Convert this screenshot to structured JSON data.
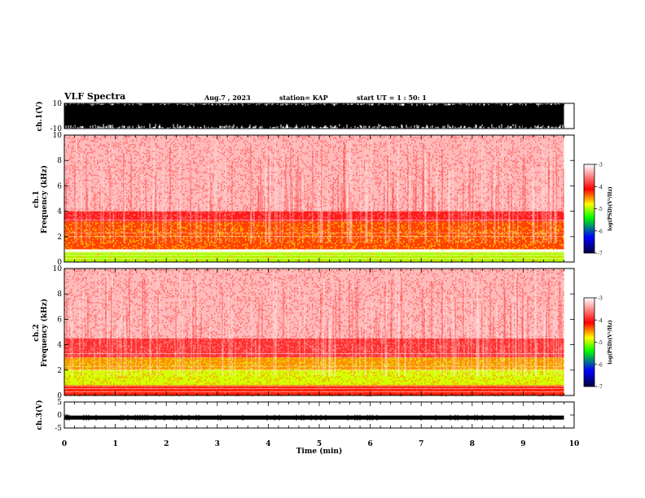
{
  "header": {
    "title": "VLF Spectra",
    "date": "Aug.7 , 2023",
    "station": "station= KAP",
    "start": "start UT = 1 : 50: 1"
  },
  "chart_data": [
    {
      "type": "line",
      "panel": "ch1-waveform",
      "ylabel": "ch.1(V)",
      "ylim": [
        -10,
        10
      ],
      "y_ticks": [
        "10",
        "-10"
      ],
      "xlim": [
        0,
        10
      ],
      "trace_extent_min": 9.8,
      "trace_color": "#000000"
    },
    {
      "type": "heatmap",
      "panel": "ch1-spectrogram",
      "ylabel": "ch.1\nFrequency (kHz)",
      "ylim": [
        0,
        10
      ],
      "y_ticks": [
        "0",
        "2",
        "4",
        "6",
        "8",
        "10"
      ],
      "xlim": [
        0,
        10
      ],
      "data_extent_min": 9.8,
      "colorbar": {
        "label": "log(PSD)(V²/Hz)",
        "range": [
          -7,
          -3
        ],
        "ticks": [
          "-3",
          "-4",
          "-5",
          "-6",
          "-7"
        ],
        "colors": [
          "#000040",
          "#0000ff",
          "#00ff00",
          "#ffff00",
          "#ff0000",
          "#ffffff"
        ]
      },
      "bands": [
        {
          "from_khz": 0,
          "to_khz": 0.8,
          "log_psd": -5.0
        },
        {
          "from_khz": 1.0,
          "to_khz": 3.2,
          "log_psd": -4.3
        },
        {
          "from_khz": 3.2,
          "to_khz": 4.0,
          "log_psd": -4.0
        },
        {
          "from_khz": 4.0,
          "to_khz": 10.0,
          "log_psd": -3.3
        }
      ]
    },
    {
      "type": "heatmap",
      "panel": "ch2-spectrogram",
      "ylabel": "ch.2\nFrequency (kHz)",
      "ylim": [
        0,
        10
      ],
      "y_ticks": [
        "0",
        "2",
        "4",
        "6",
        "8",
        "10"
      ],
      "xlim": [
        0,
        10
      ],
      "data_extent_min": 9.8,
      "colorbar": {
        "label": "log(PSD)(V²/Hz)",
        "range": [
          -7,
          -3
        ],
        "ticks": [
          "-3",
          "-4",
          "-5",
          "-6",
          "-7"
        ],
        "colors": [
          "#000040",
          "#0000ff",
          "#00ff00",
          "#ffff00",
          "#ff0000",
          "#ffffff"
        ]
      },
      "bands": [
        {
          "from_khz": 0,
          "to_khz": 0.8,
          "log_psd": -4.2
        },
        {
          "from_khz": 0.8,
          "to_khz": 2.0,
          "log_psd": -4.9
        },
        {
          "from_khz": 2.0,
          "to_khz": 3.0,
          "log_psd": -4.5
        },
        {
          "from_khz": 3.0,
          "to_khz": 4.5,
          "log_psd": -3.9
        },
        {
          "from_khz": 4.5,
          "to_khz": 10.0,
          "log_psd": -3.3
        }
      ]
    },
    {
      "type": "line",
      "panel": "ch3-waveform",
      "ylabel": "ch.3(V)",
      "ylim": [
        -5,
        5
      ],
      "y_ticks": [
        "5",
        "0",
        "-5"
      ],
      "xlim": [
        0,
        10
      ],
      "trace_center_v": -1,
      "trace_extent_min": 9.8,
      "xlabel": "Time (min)",
      "x_ticks": [
        "0",
        "1",
        "2",
        "3",
        "4",
        "5",
        "6",
        "7",
        "8",
        "9",
        "10"
      ]
    }
  ]
}
